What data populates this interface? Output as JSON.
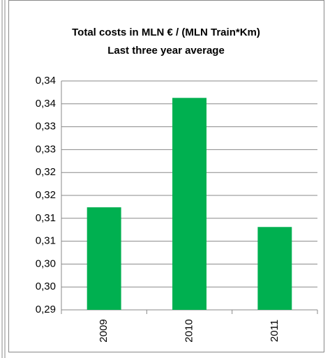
{
  "chart_data": {
    "type": "bar",
    "title": "Total costs in MLN € / (MLN Train*Km)",
    "subtitle": "Last three year average",
    "categories": [
      "2009",
      "2010",
      "2011"
    ],
    "values": [
      0.3124,
      0.3363,
      0.3081
    ],
    "color": "#00b050",
    "ylim": [
      0.29,
      0.34
    ],
    "yticks": [
      {
        "value": 0.29,
        "label": "0,29"
      },
      {
        "value": 0.295,
        "label": "0,30"
      },
      {
        "value": 0.3,
        "label": "0,30"
      },
      {
        "value": 0.305,
        "label": "0,31"
      },
      {
        "value": 0.31,
        "label": "0,31"
      },
      {
        "value": 0.315,
        "label": "0,32"
      },
      {
        "value": 0.32,
        "label": "0,32"
      },
      {
        "value": 0.325,
        "label": "0,33"
      },
      {
        "value": 0.33,
        "label": "0,33"
      },
      {
        "value": 0.335,
        "label": "0,34"
      },
      {
        "value": 0.34,
        "label": "0,34"
      }
    ],
    "grid": true
  }
}
